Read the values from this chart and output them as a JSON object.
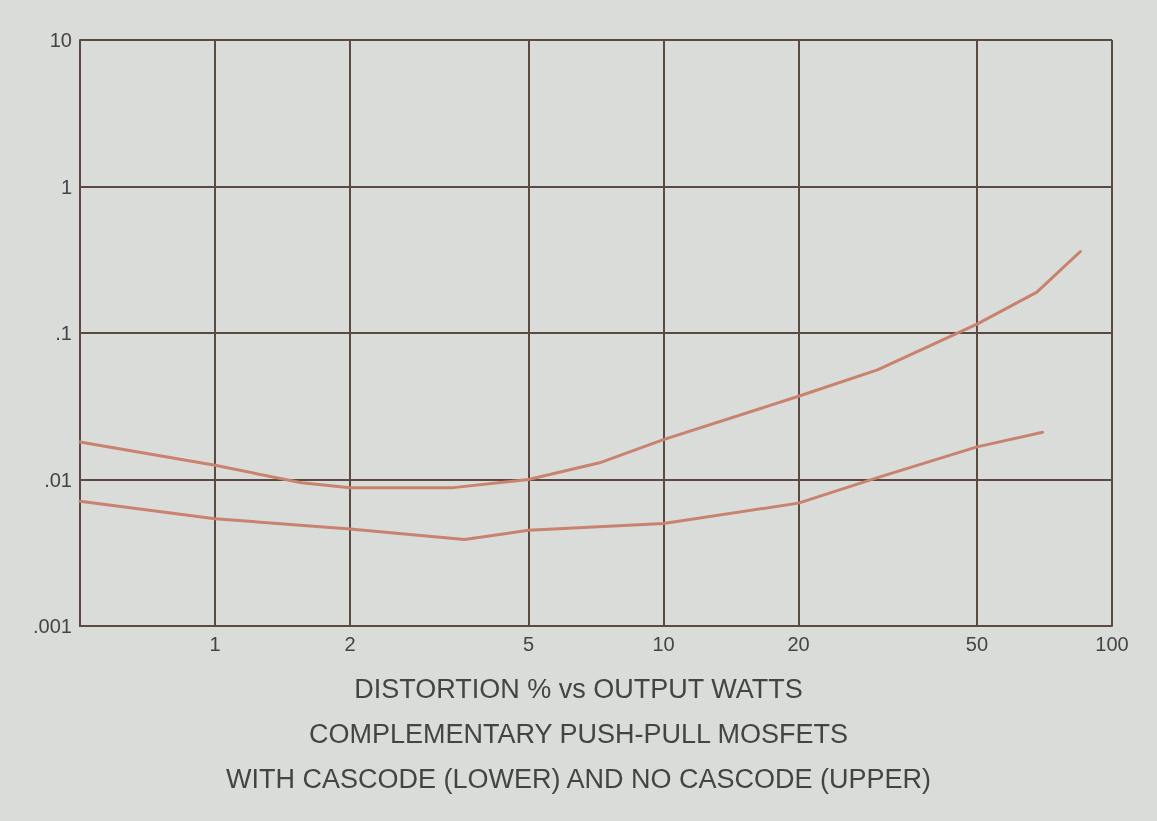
{
  "chart_data": {
    "type": "line",
    "title": "DISTORTION % vs OUTPUT WATTS",
    "subtitle": "COMPLEMENTARY PUSH-PULL MOSFETS",
    "annotations": [
      "WITH CASCODE (LOWER) AND NO CASCODE (UPPER)"
    ],
    "log": "xy",
    "grid": true,
    "marker": "none",
    "line_style": "solid",
    "xlim": [
      0.5,
      100
    ],
    "xticks": [
      1,
      2,
      5,
      10,
      20,
      50,
      100
    ],
    "ylim": [
      0.001,
      10
    ],
    "yticks": [
      {
        "value": 0.001,
        "label": ".001"
      },
      {
        "value": 0.01,
        "label": ".01"
      },
      {
        "value": 0.1,
        "label": ".1"
      },
      1,
      10
    ],
    "series": [
      {
        "color": "#c8826e",
        "x": [
          0.5,
          1,
          1.56,
          2,
          3.4,
          5,
          7.2,
          10,
          20,
          30,
          50,
          68,
          85
        ],
        "values": [
          0.018,
          0.0125,
          0.0095,
          0.0088,
          0.0088,
          0.01,
          0.013,
          0.0187,
          0.037,
          0.056,
          0.115,
          0.19,
          0.36
        ]
      },
      {
        "color": "#c8826e",
        "x": [
          0.5,
          1,
          2,
          3.6,
          5,
          10,
          20,
          30,
          50,
          70
        ],
        "values": [
          0.0071,
          0.0054,
          0.0046,
          0.0039,
          0.0045,
          0.005,
          0.0069,
          0.0103,
          0.0167,
          0.021
        ]
      }
    ]
  }
}
